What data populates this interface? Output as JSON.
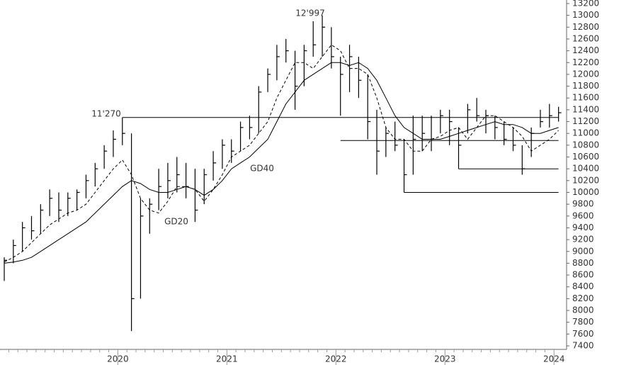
{
  "chart_data": {
    "type": "ohlc",
    "color": "#000000",
    "categories": [
      null,
      null,
      null,
      null,
      null,
      null,
      null,
      null,
      null,
      null,
      null,
      null,
      null,
      "2020",
      null,
      null,
      null,
      null,
      null,
      null,
      null,
      null,
      null,
      null,
      null,
      "2021",
      null,
      null,
      null,
      null,
      null,
      null,
      null,
      null,
      null,
      null,
      null,
      "2022",
      null,
      null,
      null,
      null,
      null,
      null,
      null,
      null,
      null,
      null,
      null,
      "2023",
      null,
      null,
      null,
      null,
      null,
      null,
      null,
      null,
      null,
      null,
      null,
      "2024"
    ],
    "high": [
      8900,
      9200,
      9500,
      9600,
      9800,
      10050,
      10000,
      10000,
      10050,
      10300,
      10500,
      10800,
      11050,
      11270,
      11000,
      9900,
      9900,
      10400,
      10500,
      10600,
      10500,
      10400,
      10400,
      10700,
      10900,
      10900,
      11200,
      11300,
      11800,
      12100,
      12500,
      12600,
      12400,
      12500,
      12900,
      12997,
      12800,
      12300,
      12500,
      12300,
      12000,
      11400,
      11100,
      11200,
      10900,
      11300,
      11300,
      11300,
      11400,
      11400,
      11100,
      11500,
      11600,
      11400,
      11300,
      11200,
      11100,
      10800,
      11100,
      11400,
      11500,
      11450
    ],
    "low": [
      8500,
      8800,
      9000,
      9200,
      9300,
      9600,
      9500,
      9600,
      9700,
      9900,
      10100,
      10400,
      10600,
      10800,
      7650,
      8200,
      9300,
      9700,
      9900,
      10000,
      9900,
      9500,
      9800,
      10200,
      10400,
      10500,
      10700,
      10900,
      11000,
      11700,
      11900,
      12200,
      11400,
      11800,
      12300,
      12300,
      12100,
      11300,
      11700,
      11600,
      10900,
      10300,
      10600,
      10700,
      10000,
      10300,
      10700,
      10700,
      11000,
      10800,
      10400,
      11000,
      11200,
      11000,
      10900,
      10800,
      10700,
      10300,
      10600,
      11100,
      11100,
      11200
    ],
    "close": [
      8850,
      9100,
      9400,
      9350,
      9700,
      9900,
      9700,
      9900,
      10000,
      10200,
      10400,
      10700,
      10900,
      11000,
      8200,
      9600,
      9800,
      10100,
      10200,
      10300,
      10100,
      9700,
      10300,
      10500,
      10800,
      10700,
      11100,
      11100,
      11700,
      12000,
      12300,
      12400,
      11800,
      12400,
      12500,
      12800,
      12300,
      12000,
      12300,
      11900,
      11200,
      10700,
      11000,
      10800,
      10300,
      10900,
      11000,
      10900,
      11300,
      11200,
      10800,
      11400,
      11300,
      11300,
      11100,
      10900,
      10800,
      10400,
      11000,
      11200,
      11300,
      11350
    ],
    "series": [
      {
        "name": "GD20",
        "color": "#000000",
        "dashed": true,
        "values": [
          8820,
          8900,
          9000,
          9150,
          9300,
          9450,
          9550,
          9650,
          9700,
          9800,
          10000,
          10200,
          10400,
          10550,
          10300,
          9900,
          9700,
          9650,
          9850,
          10100,
          10100,
          10050,
          9850,
          10050,
          10300,
          10600,
          10700,
          10800,
          11000,
          11200,
          11600,
          11900,
          12200,
          12200,
          12100,
          12300,
          12500,
          12400,
          12100,
          12100,
          12000,
          11600,
          11100,
          10900,
          10900,
          10700,
          10700,
          10900,
          10950,
          11050,
          11100,
          10900,
          11100,
          11300,
          11300,
          11200,
          11100,
          10950,
          10700,
          10800,
          10900,
          11050
        ]
      },
      {
        "name": "GD40",
        "color": "#000000",
        "dashed": false,
        "values": [
          8800,
          8820,
          8850,
          8900,
          9000,
          9100,
          9200,
          9300,
          9400,
          9500,
          9650,
          9800,
          9950,
          10100,
          10200,
          10150,
          10050,
          10000,
          10000,
          10050,
          10100,
          10050,
          9950,
          10050,
          10200,
          10400,
          10500,
          10600,
          10750,
          10900,
          11200,
          11500,
          11700,
          11900,
          12000,
          12100,
          12200,
          12200,
          12150,
          12200,
          12100,
          11900,
          11600,
          11300,
          11100,
          11000,
          10900,
          10900,
          10900,
          10950,
          11000,
          11050,
          11100,
          11150,
          11200,
          11150,
          11150,
          11100,
          11000,
          11000,
          11050,
          11100
        ]
      }
    ],
    "levels": [
      [
        null,
        null,
        null,
        null,
        null,
        null,
        null,
        null,
        null,
        null,
        null,
        null,
        null,
        11270,
        11270,
        11270,
        11270,
        11270,
        11270,
        11270,
        11270,
        11270,
        11270,
        11270,
        11270,
        11270,
        11270,
        11270,
        11270,
        11270,
        11270,
        11270,
        11270,
        11270,
        11270,
        11270,
        11270,
        11270,
        11270,
        11270,
        11270,
        11270,
        11270,
        11270,
        11270,
        11270,
        11270,
        11270,
        11270,
        11270,
        11270,
        11270,
        11270,
        11270,
        11270,
        11270,
        11270,
        11270,
        11270,
        11270,
        11270,
        11270
      ],
      [
        null,
        null,
        null,
        null,
        null,
        null,
        null,
        null,
        null,
        null,
        null,
        null,
        null,
        null,
        null,
        null,
        null,
        null,
        null,
        null,
        null,
        null,
        null,
        null,
        null,
        null,
        null,
        null,
        null,
        null,
        null,
        null,
        null,
        null,
        null,
        null,
        null,
        10880,
        10880,
        10880,
        10880,
        10880,
        10880,
        10880,
        10880,
        10880,
        10880,
        10880,
        10880,
        10880,
        10880,
        10880,
        10880,
        10880,
        10880,
        10880,
        10880,
        10880,
        10880,
        10880,
        10880,
        10880
      ],
      [
        null,
        null,
        null,
        null,
        null,
        null,
        null,
        null,
        null,
        null,
        null,
        null,
        null,
        null,
        null,
        null,
        null,
        null,
        null,
        null,
        null,
        null,
        null,
        null,
        null,
        null,
        null,
        null,
        null,
        null,
        null,
        null,
        null,
        null,
        null,
        null,
        null,
        null,
        null,
        null,
        null,
        null,
        null,
        null,
        10000,
        10000,
        10000,
        10000,
        10000,
        10000,
        10000,
        10000,
        10000,
        10000,
        10000,
        10000,
        10000,
        10000,
        10000,
        10000,
        10000,
        10000
      ],
      [
        null,
        null,
        null,
        null,
        null,
        null,
        null,
        null,
        null,
        null,
        null,
        null,
        null,
        null,
        null,
        null,
        null,
        null,
        null,
        null,
        null,
        null,
        null,
        null,
        null,
        null,
        null,
        null,
        null,
        null,
        null,
        null,
        null,
        null,
        null,
        null,
        null,
        null,
        null,
        null,
        null,
        null,
        null,
        null,
        null,
        null,
        null,
        null,
        null,
        null,
        10400,
        10400,
        10400,
        10400,
        10400,
        10400,
        10400,
        10400,
        10400,
        10400,
        10400,
        10400
      ]
    ],
    "annotations": [
      "11'270",
      "12'997"
    ],
    "ylim": [
      7400,
      13200
    ],
    "yticks": [
      7400,
      7600,
      7800,
      8000,
      8200,
      8400,
      8600,
      8800,
      9000,
      9200,
      9400,
      9600,
      9800,
      10000,
      10200,
      10400,
      10600,
      10800,
      11000,
      11200,
      11400,
      11600,
      11800,
      12000,
      12200,
      12400,
      12600,
      12800,
      13000,
      13200
    ]
  }
}
